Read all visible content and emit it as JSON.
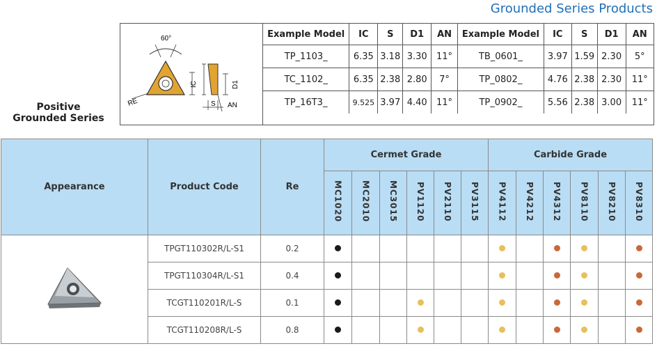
{
  "header": {
    "page_title": "Grounded Series Products",
    "side_title_line1": "Positive",
    "side_title_line2": "Grounded Series"
  },
  "diagram": {
    "angle_label": "60°",
    "re_label": "RE",
    "ic_label": "IC",
    "s_label": "S",
    "an_label": "AN",
    "d1_label": "D1"
  },
  "spec_table": {
    "headers": [
      "Example Model",
      "IC",
      "S",
      "D1",
      "AN",
      "Example Model",
      "IC",
      "S",
      "D1",
      "AN"
    ],
    "rows": [
      [
        "TP_1103_",
        "6.35",
        "3.18",
        "3.30",
        "11°",
        "TB_0601_",
        "3.97",
        "1.59",
        "2.30",
        "5°"
      ],
      [
        "TC_1102_",
        "6.35",
        "2.38",
        "2.80",
        "7°",
        "TP_0802_",
        "4.76",
        "2.38",
        "2.30",
        "11°"
      ],
      [
        "TP_16T3_",
        "9.525",
        "3.97",
        "4.40",
        "11°",
        "TP_0902_",
        "5.56",
        "2.38",
        "3.00",
        "11°"
      ]
    ]
  },
  "grade_table": {
    "col_appearance": "Appearance",
    "col_product_code": "Product Code",
    "col_re": "Re",
    "cermet_group": "Cermet Grade",
    "carbide_group": "Carbide Grade",
    "cermet_grades": [
      "MC1020",
      "MC2010",
      "MC3015",
      "PV1120",
      "PV2110",
      "PV3115"
    ],
    "carbide_grades": [
      "PV4112",
      "PV4212",
      "PV4312",
      "PV8110",
      "PV8210",
      "PV8310"
    ],
    "dot_colors": {
      "black": "#1a1a1a",
      "gold": "#e8bf5a",
      "copper": "#c8693a"
    },
    "rows": [
      {
        "code": "TPGT110302R/L-S1",
        "re": "0.2",
        "cells": [
          "black",
          "",
          "",
          "",
          "",
          "",
          "gold",
          "",
          "copper",
          "gold",
          "",
          "copper"
        ]
      },
      {
        "code": "TPGT110304R/L-S1",
        "re": "0.4",
        "cells": [
          "black",
          "",
          "",
          "",
          "",
          "",
          "gold",
          "",
          "copper",
          "gold",
          "",
          "copper"
        ]
      },
      {
        "code": "TCGT110201R/L-S",
        "re": "0.1",
        "cells": [
          "black",
          "",
          "",
          "gold",
          "",
          "",
          "gold",
          "",
          "copper",
          "gold",
          "",
          "copper"
        ]
      },
      {
        "code": "TCGT110208R/L-S",
        "re": "0.8",
        "cells": [
          "black",
          "",
          "",
          "gold",
          "",
          "",
          "gold",
          "",
          "copper",
          "gold",
          "",
          "copper"
        ]
      }
    ]
  }
}
